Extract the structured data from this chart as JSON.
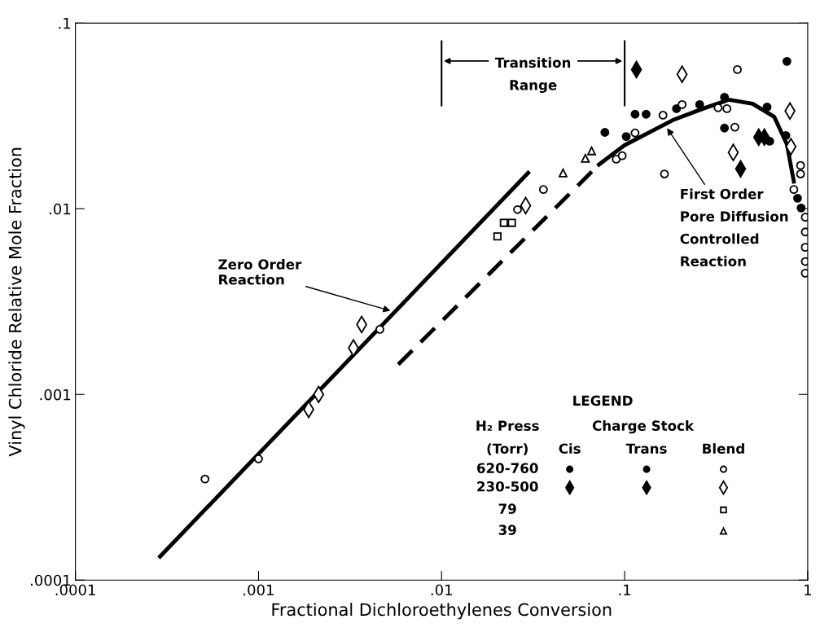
{
  "chart_data": {
    "type": "scatter",
    "xlabel": "Fractional Dichloroethylenes Conversion",
    "ylabel": "Vinyl Chloride Relative Mole Fraction",
    "log": "xy",
    "xlim": [
      0.0001,
      1
    ],
    "ylim": [
      0.0001,
      0.1
    ],
    "xticks": [
      {
        "value": 0.0001,
        "label": ".0001"
      },
      {
        "value": 0.001,
        "label": ".001"
      },
      {
        "value": 0.01,
        "label": ".01"
      },
      {
        "value": 0.1,
        "label": ".1"
      },
      {
        "value": 1,
        "label": "1"
      }
    ],
    "yticks": [
      {
        "value": 0.0001,
        "label": ".0001"
      },
      {
        "value": 0.001,
        "label": ".001"
      },
      {
        "value": 0.01,
        "label": ".01"
      },
      {
        "value": 0.1,
        "label": ".1"
      }
    ],
    "grid": false,
    "series": [
      {
        "type": "line",
        "color": "#000000",
        "line_style": "solid",
        "marker": "none",
        "x": [
          0.00029,
          0.0297
        ],
        "values": [
          0.000134,
          0.0156
        ]
      },
      {
        "type": "line",
        "color": "#000000",
        "line_style": "dashed",
        "marker": "none",
        "x": [
          0.0058,
          0.0724
        ],
        "values": [
          0.00145,
          0.0173
        ]
      },
      {
        "type": "line",
        "color": "#000000",
        "line_style": "solid",
        "marker": "none",
        "x": [
          0.0724,
          0.1,
          0.183,
          0.27,
          0.351,
          0.37,
          0.5,
          0.656,
          0.77,
          0.84
        ],
        "values": [
          0.0173,
          0.022,
          0.03,
          0.0347,
          0.0379,
          0.0387,
          0.0368,
          0.0313,
          0.0222,
          0.014
        ]
      },
      {
        "type": "scatter",
        "color": "#000000",
        "marker": "circle",
        "x": [
          0.078,
          0.102,
          0.114,
          0.131,
          0.192,
          0.257,
          0.351,
          0.62,
          0.77,
          0.88,
          0.92
        ],
        "values": [
          0.0258,
          0.0245,
          0.0323,
          0.0323,
          0.0346,
          0.0364,
          0.0399,
          0.0231,
          0.0622,
          0.0114,
          0.0101
        ]
      },
      {
        "type": "scatter",
        "color": "#000000",
        "marker": "circle",
        "x": [
          0.351,
          0.6,
          0.76
        ],
        "values": [
          0.0272,
          0.0353,
          0.0248
        ]
      },
      {
        "type": "scatter",
        "color": "#000000",
        "marker": "circle",
        "x": [
          0.00051,
          0.001,
          0.0046,
          0.026,
          0.036,
          0.09,
          0.097,
          0.114,
          0.162,
          0.165,
          0.206,
          0.324,
          0.362,
          0.4,
          0.413,
          0.84,
          0.914,
          0.914,
          0.97,
          0.97,
          0.97,
          0.97,
          0.97
        ],
        "values": [
          0.00035,
          0.00045,
          0.00224,
          0.0099,
          0.0127,
          0.0185,
          0.0193,
          0.0256,
          0.0319,
          0.0154,
          0.0364,
          0.035,
          0.0346,
          0.0275,
          0.0562,
          0.0127,
          0.0171,
          0.0154,
          0.009,
          0.0075,
          0.0062,
          0.0052,
          0.0045
        ]
      },
      {
        "type": "scatter",
        "color": "#000000",
        "marker": "diamond",
        "x": [
          0.54
        ],
        "values": [
          0.0243
        ]
      },
      {
        "type": "scatter",
        "color": "#000000",
        "marker": "diamond",
        "x": [
          0.116,
          0.43,
          0.58
        ],
        "values": [
          0.0562,
          0.0164,
          0.0243
        ]
      },
      {
        "type": "scatter",
        "color": "#000000",
        "marker": "diamond",
        "x": [
          0.00188,
          0.00213,
          0.0033,
          0.00366,
          0.0288,
          0.206,
          0.392,
          0.8,
          0.81
        ],
        "values": [
          0.00083,
          0.001,
          0.00178,
          0.00238,
          0.0104,
          0.053,
          0.0201,
          0.0336,
          0.0216
        ]
      },
      {
        "type": "scatter",
        "color": "#000000",
        "marker": "square",
        "x": [
          0.0202,
          0.0219,
          0.0242
        ],
        "values": [
          0.0071,
          0.0084,
          0.0084
        ]
      },
      {
        "type": "scatter",
        "color": "#000000",
        "marker": "triangle",
        "x": [
          0.0461,
          0.061,
          0.066
        ],
        "values": [
          0.0156,
          0.0187,
          0.0205
        ]
      }
    ],
    "annotations": [
      {
        "text": "Zero Order\nReaction",
        "x": 0.0054,
        "y": 0.0028
      },
      {
        "text": "First Order\nPore Diffusion\nControlled\nReaction",
        "x": 0.168,
        "y": 0.0278
      },
      "Transition\nRange",
      "LEGEND",
      "H₂ Press",
      "Charge Stock",
      "(Torr)",
      "Cis",
      "Trans",
      "Blend",
      "620-760",
      "230-500",
      "79",
      "39"
    ]
  }
}
